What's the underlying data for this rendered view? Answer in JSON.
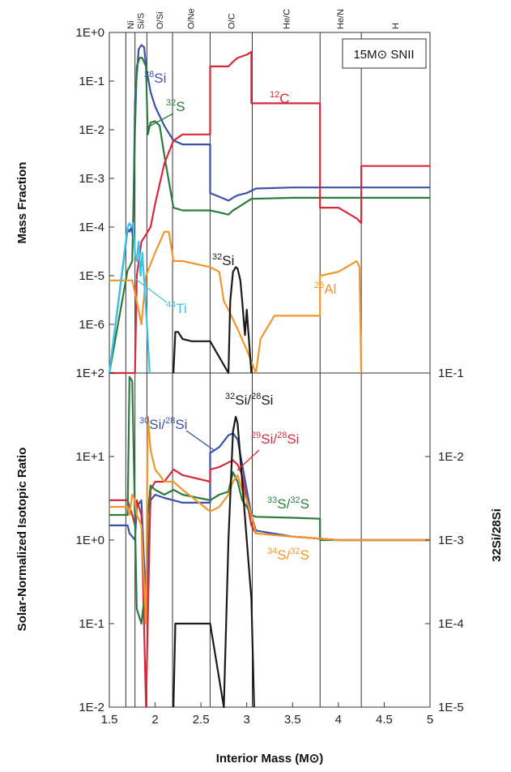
{
  "chart_data": [
    {
      "panel": "top",
      "type": "line",
      "y_scale": "log",
      "xlim": [
        1.5,
        5.0
      ],
      "ylim": [
        1e-07,
        1.0
      ],
      "ylabel": "Mass Fraction",
      "y_ticks": [
        "1E+0",
        "1E-1",
        "1E-2",
        "1E-3",
        "1E-4",
        "1E-5",
        "1E-6"
      ],
      "legend_box": "15M⊙ SNII",
      "series": [
        {
          "name": "28Si",
          "color": "#3a52a8",
          "x": [
            1.5,
            1.7,
            1.72,
            1.74,
            1.76,
            1.78,
            1.82,
            1.85,
            1.88,
            1.9,
            1.95,
            2.0,
            2.1,
            2.2,
            2.25,
            2.3,
            2.6,
            2.6,
            2.7,
            2.8,
            2.85,
            2.9,
            3.0,
            3.1,
            3.5,
            4.0,
            4.5,
            5.0
          ],
          "y": [
            1e-07,
            9e-05,
            8e-05,
            0.0001,
            6e-05,
            0.04,
            0.45,
            0.55,
            0.5,
            0.2,
            0.06,
            0.03,
            0.012,
            0.006,
            0.0055,
            0.005,
            0.005,
            0.0005,
            0.00042,
            0.00035,
            0.0004,
            0.00045,
            0.0005,
            0.00062,
            0.00065,
            0.00065,
            0.00065,
            0.00065
          ]
        },
        {
          "name": "32S",
          "color": "#2d7a3e",
          "x": [
            1.5,
            1.7,
            1.72,
            1.75,
            1.78,
            1.8,
            1.83,
            1.86,
            1.9,
            1.92,
            1.95,
            2.0,
            2.05,
            2.1,
            2.2,
            2.3,
            2.6,
            2.7,
            2.8,
            2.85,
            2.9,
            3.05,
            3.5,
            4.0,
            4.5,
            5.0
          ],
          "y": [
            1e-07,
            1.3e-05,
            1.5e-05,
            2e-05,
            0.01,
            0.2,
            0.3,
            0.3,
            0.2,
            0.008,
            0.014,
            0.015,
            0.012,
            0.003,
            0.00025,
            0.00022,
            0.00022,
            0.0002,
            0.00018,
            0.00022,
            0.00025,
            0.00038,
            0.0004,
            0.0004,
            0.0004,
            0.0004
          ]
        },
        {
          "name": "12C",
          "color": "#d62a3a",
          "x": [
            1.5,
            1.78,
            1.8,
            1.85,
            1.9,
            1.95,
            2.0,
            2.1,
            2.2,
            2.3,
            2.6,
            2.6,
            2.7,
            2.8,
            2.85,
            2.9,
            3.0,
            3.05,
            3.05,
            3.5,
            3.8,
            3.8,
            4.0,
            4.2,
            4.25,
            4.25,
            4.5,
            5.0
          ],
          "y": [
            1e-07,
            1e-07,
            1e-05,
            5e-05,
            7e-05,
            0.0001,
            0.0003,
            0.002,
            0.006,
            0.008,
            0.008,
            0.2,
            0.2,
            0.2,
            0.25,
            0.3,
            0.35,
            0.4,
            0.035,
            0.035,
            0.035,
            0.00025,
            0.00025,
            0.00015,
            0.00012,
            0.0018,
            0.0018,
            0.0018
          ]
        },
        {
          "name": "26Al",
          "color": "#f0962c",
          "x": [
            1.5,
            1.75,
            1.8,
            1.85,
            1.9,
            2.0,
            2.1,
            2.15,
            2.2,
            2.3,
            2.6,
            2.7,
            2.75,
            2.8,
            2.9,
            3.0,
            3.1,
            3.15,
            3.3,
            3.8,
            3.8,
            4.0,
            4.2,
            4.23,
            4.25
          ],
          "y": [
            8e-06,
            8e-06,
            3e-06,
            1e-06,
            1e-05,
            3e-05,
            8e-05,
            8e-05,
            2e-05,
            2e-05,
            1.5e-05,
            1.2e-05,
            3e-06,
            2e-06,
            8e-07,
            3e-07,
            1e-07,
            5e-07,
            1.5e-06,
            1.5e-06,
            1e-05,
            1.2e-05,
            2e-05,
            1.5e-05,
            1e-07
          ]
        },
        {
          "name": "44Ti",
          "color": "#3ec3e6",
          "x": [
            1.5,
            1.7,
            1.72,
            1.74,
            1.76,
            1.78,
            1.8,
            1.82,
            1.84,
            1.86,
            1.88,
            1.9,
            1.92,
            1.94
          ],
          "y": [
            1e-07,
            0.0001,
            0.00012,
            0.0001,
            0.00012,
            3e-05,
            2e-05,
            5e-05,
            1e-05,
            3e-05,
            8e-06,
            2e-06,
            5e-07,
            1e-07
          ]
        },
        {
          "name": "32Si",
          "color": "#1a1a1a",
          "x": [
            2.2,
            2.22,
            2.25,
            2.3,
            2.4,
            2.6,
            2.8,
            2.82,
            2.85,
            2.88,
            2.9,
            2.93,
            2.95,
            2.98,
            3.0,
            3.05
          ],
          "y": [
            1e-07,
            7e-07,
            7e-07,
            5e-07,
            4.5e-07,
            4.5e-07,
            1e-07,
            3e-06,
            1.2e-05,
            1.5e-05,
            1.4e-05,
            8e-06,
            3e-06,
            6e-07,
            2e-06,
            1e-07
          ]
        }
      ],
      "labels": {
        "si28": "Si",
        "si28_mass": "28",
        "s32": "S",
        "s32_mass": "32",
        "c12": "C",
        "c12_mass": "12",
        "si32": "Si",
        "si32_mass": "32",
        "al26": "Al",
        "al26_mass": "26",
        "ti44": "Ti",
        "ti44_mass": "44"
      }
    },
    {
      "panel": "bottom",
      "type": "line",
      "y_scale": "log",
      "xlim": [
        1.5,
        5.0
      ],
      "ylim": [
        0.01,
        100
      ],
      "xlabel": "Interior Mass (M⊙)",
      "ylabel": "Solar-Normalized Isotopic Ratio",
      "y2label": "32Si/28Si",
      "y_ticks": [
        "1E+2",
        "1E+1",
        "1E+0",
        "1E-1",
        "1E-2"
      ],
      "y2_ticks": [
        "1E-1",
        "1E-2",
        "1E-3",
        "1E-4",
        "1E-5"
      ],
      "x_ticks": [
        "1.5",
        "2",
        "2.5",
        "3",
        "3.5",
        "4",
        "4.5",
        "5"
      ],
      "series": [
        {
          "name": "30Si/28Si",
          "color": "#3a52a8",
          "x": [
            1.5,
            1.7,
            1.72,
            1.75,
            1.78,
            1.8,
            1.85,
            1.9,
            1.95,
            2.0,
            2.1,
            2.2,
            2.3,
            2.6,
            2.6,
            2.7,
            2.8,
            2.85,
            2.9,
            2.95,
            3.0,
            3.05,
            3.1,
            3.5,
            4.0,
            4.5,
            5.0
          ],
          "y": [
            1.5,
            1.5,
            1.2,
            1.1,
            1.0,
            2.5,
            3.0,
            0.15,
            3.0,
            3.5,
            3.2,
            3.0,
            2.8,
            2.8,
            11,
            13,
            18,
            19,
            16,
            8,
            4,
            2,
            1.3,
            1.1,
            1.0,
            1.0,
            1.0
          ]
        },
        {
          "name": "29Si/28Si",
          "color": "#d62a3a",
          "x": [
            1.5,
            1.7,
            1.72,
            1.75,
            1.78,
            1.8,
            1.85,
            1.9,
            1.95,
            2.0,
            2.1,
            2.2,
            2.3,
            2.6,
            2.6,
            2.7,
            2.8,
            2.85,
            2.9,
            2.95,
            3.0,
            3.05,
            3.1,
            3.5,
            4.0,
            4.5,
            5.0
          ],
          "y": [
            3.0,
            3.0,
            2.5,
            2.0,
            1.5,
            3.0,
            2.0,
            0.01,
            4.0,
            5.0,
            5.0,
            7.0,
            6.0,
            5.0,
            7.0,
            7.5,
            8.5,
            9.0,
            8.0,
            6.0,
            3.0,
            1.5,
            1.2,
            1.1,
            1.0,
            1.0,
            1.0
          ]
        },
        {
          "name": "33S/32S",
          "color": "#2d7a3e",
          "x": [
            1.5,
            1.7,
            1.72,
            1.75,
            1.8,
            1.85,
            1.9,
            1.92,
            1.95,
            2.0,
            2.1,
            2.2,
            2.3,
            2.6,
            2.7,
            2.8,
            2.85,
            2.9,
            2.95,
            3.0,
            3.05,
            3.1,
            3.5,
            3.8,
            3.8,
            4.0,
            4.5,
            5.0
          ],
          "y": [
            2.0,
            2.0,
            90,
            80,
            0.15,
            0.1,
            0.3,
            2.0,
            4.5,
            4.0,
            3.5,
            4.0,
            3.5,
            3.0,
            3.5,
            3.8,
            6.5,
            5.0,
            3.0,
            2.5,
            2.0,
            1.9,
            1.85,
            1.8,
            1.0,
            1.0,
            1.0,
            1.0
          ]
        },
        {
          "name": "34S/32S",
          "color": "#f0962c",
          "x": [
            1.5,
            1.7,
            1.72,
            1.75,
            1.78,
            1.8,
            1.85,
            1.9,
            1.92,
            1.95,
            2.0,
            2.05,
            2.1,
            2.2,
            2.3,
            2.6,
            2.7,
            2.8,
            2.85,
            2.9,
            2.95,
            3.0,
            3.05,
            3.1,
            3.5,
            4.0,
            4.5,
            5.0
          ],
          "y": [
            2.5,
            2.5,
            2.0,
            3.5,
            3.0,
            2.0,
            1.5,
            0.1,
            30,
            12,
            7,
            6,
            5,
            5,
            4,
            2.2,
            2.5,
            3.5,
            5,
            6,
            4,
            3,
            2,
            1.2,
            1.1,
            1.0,
            1.0,
            1.0
          ]
        },
        {
          "name": "32Si/28Si",
          "color": "#1a1a1a",
          "axis": "right",
          "x": [
            2.2,
            2.22,
            2.25,
            2.3,
            2.4,
            2.6,
            2.75,
            2.8,
            2.85,
            2.88,
            2.9,
            2.95,
            3.0,
            3.05,
            3.08
          ],
          "y": [
            1e-05,
            0.0001,
            0.0001,
            0.0001,
            0.0001,
            0.0001,
            1e-05,
            0.001,
            0.02,
            0.03,
            0.025,
            0.005,
            0.001,
            0.0002,
            1e-05
          ]
        }
      ],
      "labels": {
        "r30": "Si/",
        "r30_m1": "30",
        "r30_m2": "28",
        "r30_tail": "Si",
        "r29": "Si/",
        "r29_m1": "29",
        "r29_m2": "28",
        "r29_tail": "Si",
        "r32": "Si/",
        "r32_m1": "32",
        "r32_m2": "28",
        "r32_tail": "Si",
        "r33": "S/",
        "r33_m1": "33",
        "r33_m2": "32",
        "r33_tail": "S",
        "r34": "S/",
        "r34_m1": "34",
        "r34_m2": "32",
        "r34_tail": "S"
      }
    }
  ],
  "zones": [
    {
      "label": "Ni",
      "x": 1.68
    },
    {
      "label": "Si/S",
      "x": 1.78
    },
    {
      "label": "O/Si",
      "x": 1.91
    },
    {
      "label": "O/Ne",
      "x": 2.19
    },
    {
      "label": "O/C",
      "x": 2.6
    },
    {
      "label": "He/C",
      "x": 3.06
    },
    {
      "label": "He/N",
      "x": 3.8
    },
    {
      "label": "H",
      "x": 4.25
    }
  ],
  "zone_label_positions": [
    1.73,
    1.84,
    2.05,
    2.39,
    2.83,
    3.43,
    4.02,
    4.62
  ]
}
